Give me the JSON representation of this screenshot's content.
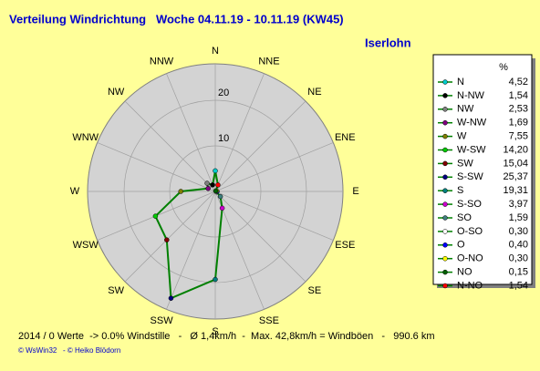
{
  "chart_data": {
    "type": "radar",
    "title": "Verteilung Windrichtung   Woche 04.11.19 - 10.11.19 (KW45)",
    "subtitle": "Iserlohn",
    "direction": "counterclockwise",
    "categories": [
      "N",
      "NNW",
      "NW",
      "WNW",
      "W",
      "WSW",
      "SW",
      "SSW",
      "S",
      "SSE",
      "SE",
      "ESE",
      "E",
      "ENE",
      "NE",
      "NNE"
    ],
    "legend_labels": [
      "N",
      "N-NW",
      "NW",
      "W-NW",
      "W",
      "W-SW",
      "SW",
      "S-SW",
      "S",
      "S-SO",
      "SO",
      "O-SO",
      "O",
      "O-NO",
      "NO",
      "N-NO"
    ],
    "legend_header": "%",
    "values": [
      4.52,
      1.54,
      2.53,
      1.69,
      7.55,
      14.2,
      15.04,
      25.37,
      19.31,
      3.97,
      1.59,
      0.3,
      0.4,
      0.3,
      0.15,
      1.54
    ],
    "value_labels": [
      "4,52",
      "1,54",
      "2,53",
      "1,69",
      "7,55",
      "14,20",
      "15,04",
      "25,37",
      "19,31",
      "3,97",
      "1,59",
      "0,30",
      "0,40",
      "0,30",
      "0,15",
      "1,54"
    ],
    "color": "#008000",
    "marker_colors": [
      "#00cccc",
      "#000000",
      "#808080",
      "#800080",
      "#808000",
      "#00cc00",
      "#800000",
      "#000080",
      "#008080",
      "#cc00cc",
      "#408080",
      "#ffffff",
      "#0000ff",
      "#ffff00",
      "#006000",
      "#ff0000"
    ],
    "rlim": [
      0,
      28
    ],
    "rticks": [
      10,
      20
    ],
    "grid": true,
    "footer": "2014 / 0 Werte  -> 0.0% Windstille   -   Ø 1,4km/h  -  Max. 42,8km/h = Windböen   -   990.6 km",
    "credits": "© WsWin32   - © Heiko Blödorn"
  }
}
